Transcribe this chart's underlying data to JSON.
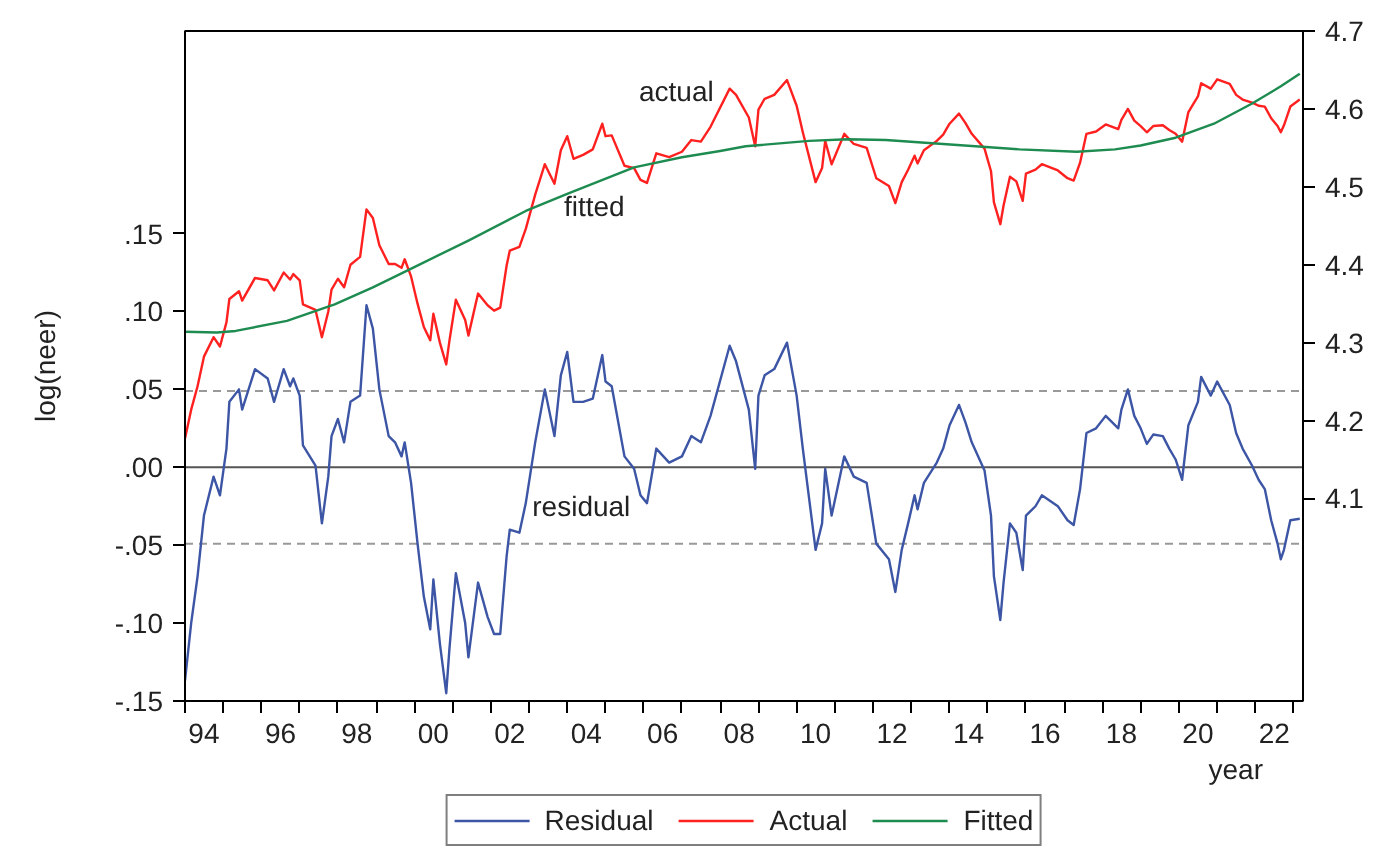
{
  "chart_data": {
    "type": "line",
    "ylabel": "log(neer)",
    "xlabel": "year",
    "x": [
      "1994-01",
      "1994-03",
      "1994-05",
      "1994-07",
      "1994-10",
      "1994-12",
      "1995-02",
      "1995-03",
      "1995-06",
      "1995-07",
      "1995-11",
      "1996-03",
      "1996-05",
      "1996-08",
      "1996-10",
      "1996-11",
      "1997-01",
      "1997-02",
      "1997-06",
      "1997-08",
      "1997-10",
      "1997-11",
      "1998-01",
      "1998-03",
      "1998-05",
      "1998-08",
      "1998-10",
      "1998-12",
      "1999-02",
      "1999-05",
      "1999-07",
      "1999-09",
      "1999-10",
      "1999-12",
      "2000-02",
      "2000-04",
      "2000-06",
      "2000-07",
      "2000-09",
      "2000-11",
      "2000-12",
      "2001-02",
      "2001-05",
      "2001-06",
      "2001-09",
      "2001-12",
      "2002-02",
      "2002-04",
      "2002-06",
      "2002-07",
      "2002-10",
      "2002-12",
      "2003-03",
      "2003-06",
      "2003-09",
      "2003-11",
      "2004-01",
      "2004-03",
      "2004-06",
      "2004-09",
      "2004-12",
      "2005-01",
      "2005-03",
      "2005-07",
      "2005-10",
      "2005-12",
      "2006-02",
      "2006-05",
      "2006-09",
      "2007-01",
      "2007-04",
      "2007-07",
      "2007-10",
      "2008-04",
      "2008-06",
      "2008-10",
      "2008-12",
      "2009-01",
      "2009-03",
      "2009-06",
      "2009-10",
      "2010-01",
      "2010-03",
      "2010-07",
      "2010-09",
      "2010-10",
      "2010-12",
      "2011-04",
      "2011-07",
      "2011-11",
      "2012-02",
      "2012-06",
      "2012-08",
      "2012-10",
      "2012-12",
      "2013-02",
      "2013-03",
      "2013-05",
      "2013-09",
      "2013-11",
      "2014-01",
      "2014-04",
      "2014-06",
      "2014-08",
      "2014-12",
      "2015-02",
      "2015-03",
      "2015-05",
      "2015-06",
      "2015-08",
      "2015-10",
      "2015-12",
      "2016-01",
      "2016-04",
      "2016-06",
      "2016-11",
      "2017-02",
      "2017-04",
      "2017-06",
      "2017-08",
      "2017-11",
      "2018-02",
      "2018-06",
      "2018-07",
      "2018-09",
      "2018-11",
      "2019-01",
      "2019-03",
      "2019-05",
      "2019-08",
      "2019-10",
      "2019-12",
      "2020-02",
      "2020-04",
      "2020-07",
      "2020-08",
      "2020-11",
      "2021-01",
      "2021-05",
      "2021-07",
      "2021-09",
      "2021-12",
      "2022-02",
      "2022-04",
      "2022-06",
      "2022-08",
      "2022-09",
      "2022-10",
      "2022-12",
      "2023-03"
    ],
    "series": [
      {
        "name": "Residual",
        "color": "#3c55a5",
        "values": [
          -0.137,
          -0.1,
          -0.07,
          -0.031,
          -0.006,
          -0.018,
          0.012,
          0.042,
          0.05,
          0.037,
          0.063,
          0.057,
          0.042,
          0.063,
          0.052,
          0.057,
          0.046,
          0.014,
          0.001,
          -0.036,
          -0.006,
          0.02,
          0.031,
          0.016,
          0.042,
          0.046,
          0.104,
          0.089,
          0.05,
          0.02,
          0.016,
          0.007,
          0.016,
          -0.01,
          -0.049,
          -0.083,
          -0.104,
          -0.072,
          -0.113,
          -0.145,
          -0.117,
          -0.068,
          -0.1,
          -0.122,
          -0.074,
          -0.096,
          -0.107,
          -0.107,
          -0.057,
          -0.04,
          -0.042,
          -0.023,
          0.016,
          0.05,
          0.02,
          0.059,
          0.074,
          0.042,
          0.042,
          0.044,
          0.072,
          0.055,
          0.052,
          0.007,
          -0.001,
          -0.018,
          -0.023,
          0.012,
          0.003,
          0.007,
          0.02,
          0.016,
          0.033,
          0.078,
          0.068,
          0.037,
          -0.001,
          0.046,
          0.059,
          0.063,
          0.08,
          0.046,
          0.012,
          -0.053,
          -0.036,
          -0.001,
          -0.031,
          0.007,
          -0.006,
          -0.01,
          -0.049,
          -0.059,
          -0.08,
          -0.053,
          -0.036,
          -0.018,
          -0.027,
          -0.01,
          0.003,
          0.012,
          0.027,
          0.04,
          0.029,
          0.016,
          -0.002,
          -0.031,
          -0.07,
          -0.098,
          -0.074,
          -0.036,
          -0.042,
          -0.066,
          -0.031,
          -0.025,
          -0.018,
          -0.025,
          -0.034,
          -0.037,
          -0.014,
          0.022,
          0.025,
          0.033,
          0.025,
          0.037,
          0.05,
          0.033,
          0.025,
          0.015,
          0.021,
          0.02,
          0.012,
          0.005,
          -0.008,
          0.027,
          0.042,
          0.058,
          0.046,
          0.055,
          0.04,
          0.022,
          0.012,
          0.001,
          -0.008,
          -0.014,
          -0.034,
          -0.049,
          -0.059,
          -0.053,
          -0.034,
          -0.033
        ]
      },
      {
        "name": "Actual",
        "color": "#ff2020",
        "axis": "y2",
        "values": [
          4.177,
          4.214,
          4.244,
          4.282,
          4.307,
          4.295,
          4.326,
          4.356,
          4.366,
          4.354,
          4.383,
          4.38,
          4.367,
          4.39,
          4.381,
          4.388,
          4.38,
          4.349,
          4.342,
          4.307,
          4.34,
          4.368,
          4.382,
          4.371,
          4.4,
          4.41,
          4.471,
          4.46,
          4.425,
          4.401,
          4.401,
          4.396,
          4.407,
          4.385,
          4.35,
          4.32,
          4.303,
          4.337,
          4.3,
          4.272,
          4.302,
          4.355,
          4.329,
          4.309,
          4.363,
          4.348,
          4.341,
          4.345,
          4.399,
          4.418,
          4.423,
          4.446,
          4.49,
          4.529,
          4.504,
          4.547,
          4.565,
          4.536,
          4.541,
          4.548,
          4.581,
          4.565,
          4.566,
          4.527,
          4.524,
          4.509,
          4.505,
          4.543,
          4.538,
          4.545,
          4.56,
          4.558,
          4.577,
          4.626,
          4.618,
          4.589,
          4.552,
          4.599,
          4.613,
          4.618,
          4.637,
          4.604,
          4.57,
          4.506,
          4.524,
          4.559,
          4.529,
          4.568,
          4.555,
          4.55,
          4.511,
          4.501,
          4.479,
          4.506,
          4.522,
          4.54,
          4.53,
          4.547,
          4.559,
          4.567,
          4.581,
          4.594,
          4.582,
          4.568,
          4.549,
          4.52,
          4.48,
          4.452,
          4.476,
          4.513,
          4.507,
          4.482,
          4.517,
          4.522,
          4.529,
          4.521,
          4.511,
          4.508,
          4.531,
          4.568,
          4.571,
          4.58,
          4.574,
          4.586,
          4.6,
          4.585,
          4.578,
          4.57,
          4.578,
          4.579,
          4.573,
          4.568,
          4.558,
          4.596,
          4.616,
          4.633,
          4.626,
          4.638,
          4.632,
          4.618,
          4.612,
          4.608,
          4.604,
          4.603,
          4.588,
          4.578,
          4.57,
          4.579,
          4.603,
          4.612
        ]
      },
      {
        "name": "Fitted",
        "color": "#1e8c50",
        "axis": "y2",
        "x": [
          "1994-01",
          "1994-11",
          "1995-05",
          "1996-09",
          "1997-12",
          "1998-12",
          "2000-01",
          "2001-06",
          "2002-12",
          "2004-01",
          "2005-10",
          "2007-01",
          "2008-01",
          "2008-09",
          "2010-05",
          "2011-05",
          "2012-05",
          "2013-11",
          "2015-11",
          "2017-05",
          "2018-05",
          "2019-01",
          "2019-12",
          "2020-12",
          "2021-12",
          "2022-09",
          "2023-03"
        ],
        "values": [
          4.314,
          4.313,
          4.315,
          4.328,
          4.349,
          4.371,
          4.397,
          4.431,
          4.469,
          4.491,
          4.525,
          4.538,
          4.546,
          4.552,
          4.559,
          4.561,
          4.56,
          4.555,
          4.548,
          4.545,
          4.548,
          4.553,
          4.563,
          4.581,
          4.607,
          4.629,
          4.645
        ]
      }
    ],
    "xlim": [
      "1994-01",
      "2023-04"
    ],
    "xticks": [
      {
        "value": "1994",
        "label": null
      },
      {
        "value": "1995",
        "label": null
      },
      {
        "value": "1996",
        "label": null
      },
      {
        "value": "1997",
        "label": null
      },
      {
        "value": "1998",
        "label": null
      },
      {
        "value": "1999",
        "label": null
      },
      {
        "value": "2000",
        "label": null
      },
      {
        "value": "2001",
        "label": null
      },
      {
        "value": "2002",
        "label": null
      },
      {
        "value": "2003",
        "label": null
      },
      {
        "value": "2004",
        "label": null
      },
      {
        "value": "2005",
        "label": null
      },
      {
        "value": "2006",
        "label": null
      },
      {
        "value": "2007",
        "label": null
      },
      {
        "value": "2008",
        "label": null
      },
      {
        "value": "2009",
        "label": null
      },
      {
        "value": "2010",
        "label": null
      },
      {
        "value": "2011",
        "label": null
      },
      {
        "value": "2012",
        "label": null
      },
      {
        "value": "2013",
        "label": null
      },
      {
        "value": "2014",
        "label": null
      },
      {
        "value": "2015",
        "label": null
      },
      {
        "value": "2016",
        "label": null
      },
      {
        "value": "2017",
        "label": null
      },
      {
        "value": "2018",
        "label": null
      },
      {
        "value": "2019",
        "label": null
      },
      {
        "value": "2020",
        "label": null
      },
      {
        "value": "2021",
        "label": null
      },
      {
        "value": "2022",
        "label": null
      },
      {
        "value": "2023",
        "label": null
      },
      {
        "value": "1994-07",
        "label": "94"
      },
      {
        "value": "1996-07",
        "label": "96"
      },
      {
        "value": "1998-07",
        "label": "98"
      },
      {
        "value": "2000-07",
        "label": "00"
      },
      {
        "value": "2002-07",
        "label": "02"
      },
      {
        "value": "2004-07",
        "label": "04"
      },
      {
        "value": "2006-07",
        "label": "06"
      },
      {
        "value": "2008-07",
        "label": "08"
      },
      {
        "value": "2010-07",
        "label": "10"
      },
      {
        "value": "2012-07",
        "label": "12"
      },
      {
        "value": "2014-07",
        "label": "14"
      },
      {
        "value": "2016-07",
        "label": "16"
      },
      {
        "value": "2018-07",
        "label": "18"
      },
      {
        "value": "2020-07",
        "label": "20"
      },
      {
        "value": "2022-07",
        "label": "22"
      }
    ],
    "ylim": [
      -0.15,
      0.28
    ],
    "yticks": [
      {
        "value": -0.15,
        "label": "-.15"
      },
      {
        "value": -0.1,
        "label": "-.10"
      },
      {
        "value": -0.05,
        "label": "-.05"
      },
      {
        "value": 0,
        "label": ".00"
      },
      {
        "value": 0.05,
        "label": ".05"
      },
      {
        "value": 0.1,
        "label": ".10"
      },
      {
        "value": 0.15,
        "label": ".15"
      }
    ],
    "y2lim": [
      3.84,
      4.7
    ],
    "y2ticks": [
      4.1,
      4.2,
      4.3,
      4.4,
      4.5,
      4.6,
      4.7
    ],
    "ref_lines": [
      {
        "axis": "y",
        "value": 0,
        "color": "#555555",
        "line_style": "solid"
      },
      {
        "axis": "y",
        "value": 0.049,
        "color": "#999999",
        "line_style": "dashed"
      },
      {
        "axis": "y",
        "value": -0.049,
        "color": "#999999",
        "line_style": "dashed"
      }
    ],
    "annotations": [
      "actual",
      {
        "text": "fitted",
        "x": "2003-12",
        "y": 0.168
      },
      {
        "text": "residual",
        "x": "2003-02",
        "y": -0.025
      }
    ],
    "legend": "bottom",
    "grid": false
  }
}
